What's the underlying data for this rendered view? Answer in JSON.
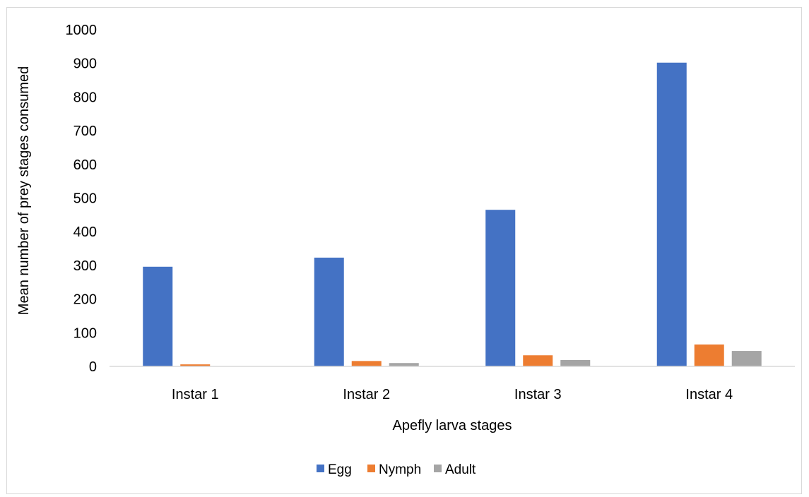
{
  "chart_data": {
    "type": "bar",
    "title": "",
    "xlabel": "Apefly larva stages",
    "ylabel": "Mean number of prey stages consumed",
    "categories": [
      "Instar 1",
      "Instar 2",
      "Instar 3",
      "Instar 4"
    ],
    "series": [
      {
        "name": "Egg",
        "color": "#4472c4",
        "values": [
          296,
          323,
          465,
          902
        ]
      },
      {
        "name": "Nymph",
        "color": "#ed7d31",
        "values": [
          6,
          16,
          33,
          65
        ]
      },
      {
        "name": "Adult",
        "color": "#a5a5a5",
        "values": [
          0,
          10,
          19,
          46
        ]
      }
    ],
    "ylim": [
      0,
      1000
    ],
    "yticks": [
      "0",
      "100",
      "200",
      "300",
      "400",
      "500",
      "600",
      "700",
      "800",
      "900",
      "1000"
    ],
    "grid": false,
    "legend_position": "bottom"
  }
}
